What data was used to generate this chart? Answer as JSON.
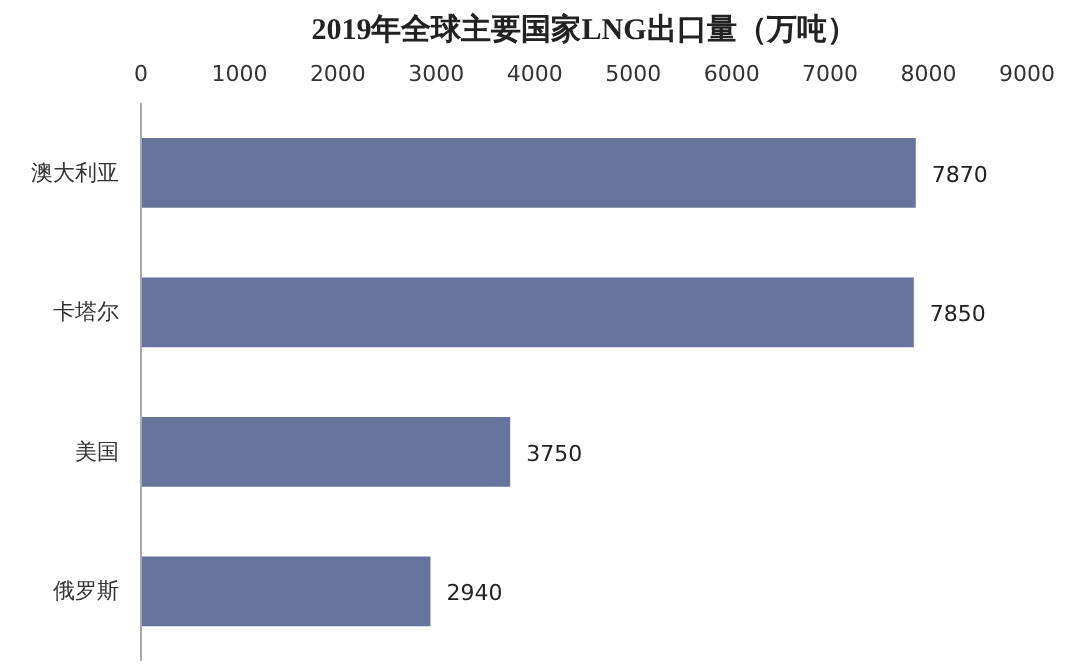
{
  "chart_data": {
    "type": "bar",
    "orientation": "horizontal",
    "title": "2019年全球主要国家LNG出口量（万吨）",
    "categories": [
      "澳大利亚",
      "卡塔尔",
      "美国",
      "俄罗斯"
    ],
    "values": [
      7870,
      7850,
      3750,
      2940
    ],
    "color": "#66739a",
    "xlim": [
      0,
      9000
    ],
    "xticks": [
      0,
      1000,
      2000,
      3000,
      4000,
      5000,
      6000,
      7000,
      8000,
      9000
    ],
    "data_labels": true,
    "grid": false
  }
}
